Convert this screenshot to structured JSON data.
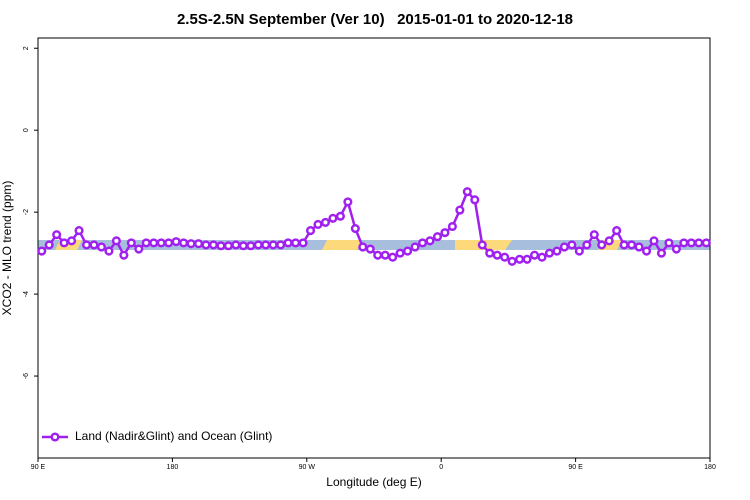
{
  "chart_data": {
    "type": "line",
    "title": "2.5S-2.5N September (Ver 10)   2015-01-01 to 2020-12-18",
    "x_label": "Longitude (deg E)",
    "y_label": "XCO2 - MLO trend (ppm)",
    "xlim": [
      90,
      540
    ],
    "xticks": [
      {
        "value": 90,
        "label": "90 E"
      },
      {
        "value": 180,
        "label": "180"
      },
      {
        "value": 270,
        "label": "90 W"
      },
      {
        "value": 360,
        "label": "0"
      },
      {
        "value": 450,
        "label": "90 E"
      },
      {
        "value": 540,
        "label": "180"
      }
    ],
    "ylim": [
      -8,
      2.25
    ],
    "yticks": [
      -6,
      -4,
      -2,
      0,
      2
    ],
    "legend": "bottom-left",
    "x": [
      92.5,
      97.5,
      102.5,
      107.5,
      112.5,
      117.5,
      122.5,
      127.5,
      132.5,
      137.5,
      142.5,
      147.5,
      152.5,
      157.5,
      162.5,
      167.5,
      172.5,
      177.5,
      182.5,
      187.5,
      192.5,
      197.5,
      202.5,
      207.5,
      212.5,
      217.5,
      222.5,
      227.5,
      232.5,
      237.5,
      242.5,
      247.5,
      252.5,
      257.5,
      262.5,
      267.5,
      272.5,
      277.5,
      282.5,
      287.5,
      292.5,
      297.5,
      302.5,
      307.5,
      312.5,
      317.5,
      322.5,
      327.5,
      332.5,
      337.5,
      342.5,
      347.5,
      352.5,
      357.5,
      362.5,
      367.5,
      372.5,
      377.5,
      382.5,
      387.5,
      392.5,
      397.5,
      402.5,
      407.5,
      412.5,
      417.5,
      422.5,
      427.5,
      432.5,
      437.5,
      442.5,
      447.5,
      452.5,
      457.5,
      462.5,
      467.5,
      472.5,
      477.5,
      482.5,
      487.5,
      492.5,
      497.5,
      502.5,
      507.5,
      512.5,
      517.5,
      522.5,
      527.5,
      532.5,
      537.5
    ],
    "series": [
      {
        "name": "Land (Nadir&Glint) and Ocean (Glint)",
        "color": "#a020f0",
        "values": [
          -2.95,
          -2.8,
          -2.55,
          -2.75,
          -2.7,
          -2.45,
          -2.8,
          -2.8,
          -2.85,
          -2.95,
          -2.7,
          -3.05,
          -2.75,
          -2.9,
          -2.75,
          -2.75,
          -2.75,
          -2.75,
          -2.72,
          -2.75,
          -2.77,
          -2.77,
          -2.8,
          -2.8,
          -2.82,
          -2.82,
          -2.8,
          -2.82,
          -2.82,
          -2.8,
          -2.8,
          -2.8,
          -2.8,
          -2.75,
          -2.75,
          -2.75,
          -2.45,
          -2.3,
          -2.25,
          -2.15,
          -2.1,
          -1.75,
          -2.4,
          -2.85,
          -2.9,
          -3.05,
          -3.05,
          -3.1,
          -3.0,
          -2.95,
          -2.85,
          -2.75,
          -2.7,
          -2.6,
          -2.5,
          -2.35,
          -1.95,
          -1.5,
          -1.7,
          -2.8,
          -3.0,
          -3.05,
          -3.1,
          -3.2,
          -3.15,
          -3.15,
          -3.05,
          -3.1,
          -3.0,
          -2.95,
          -2.85,
          -2.8,
          -2.95,
          -2.8,
          -2.55,
          -2.8,
          -2.7,
          -2.45,
          -2.8,
          -2.8,
          -2.85,
          -2.95,
          -2.7,
          -3.0,
          -2.75,
          -2.9,
          -2.75,
          -2.75,
          -2.75,
          -2.75
        ]
      }
    ]
  }
}
